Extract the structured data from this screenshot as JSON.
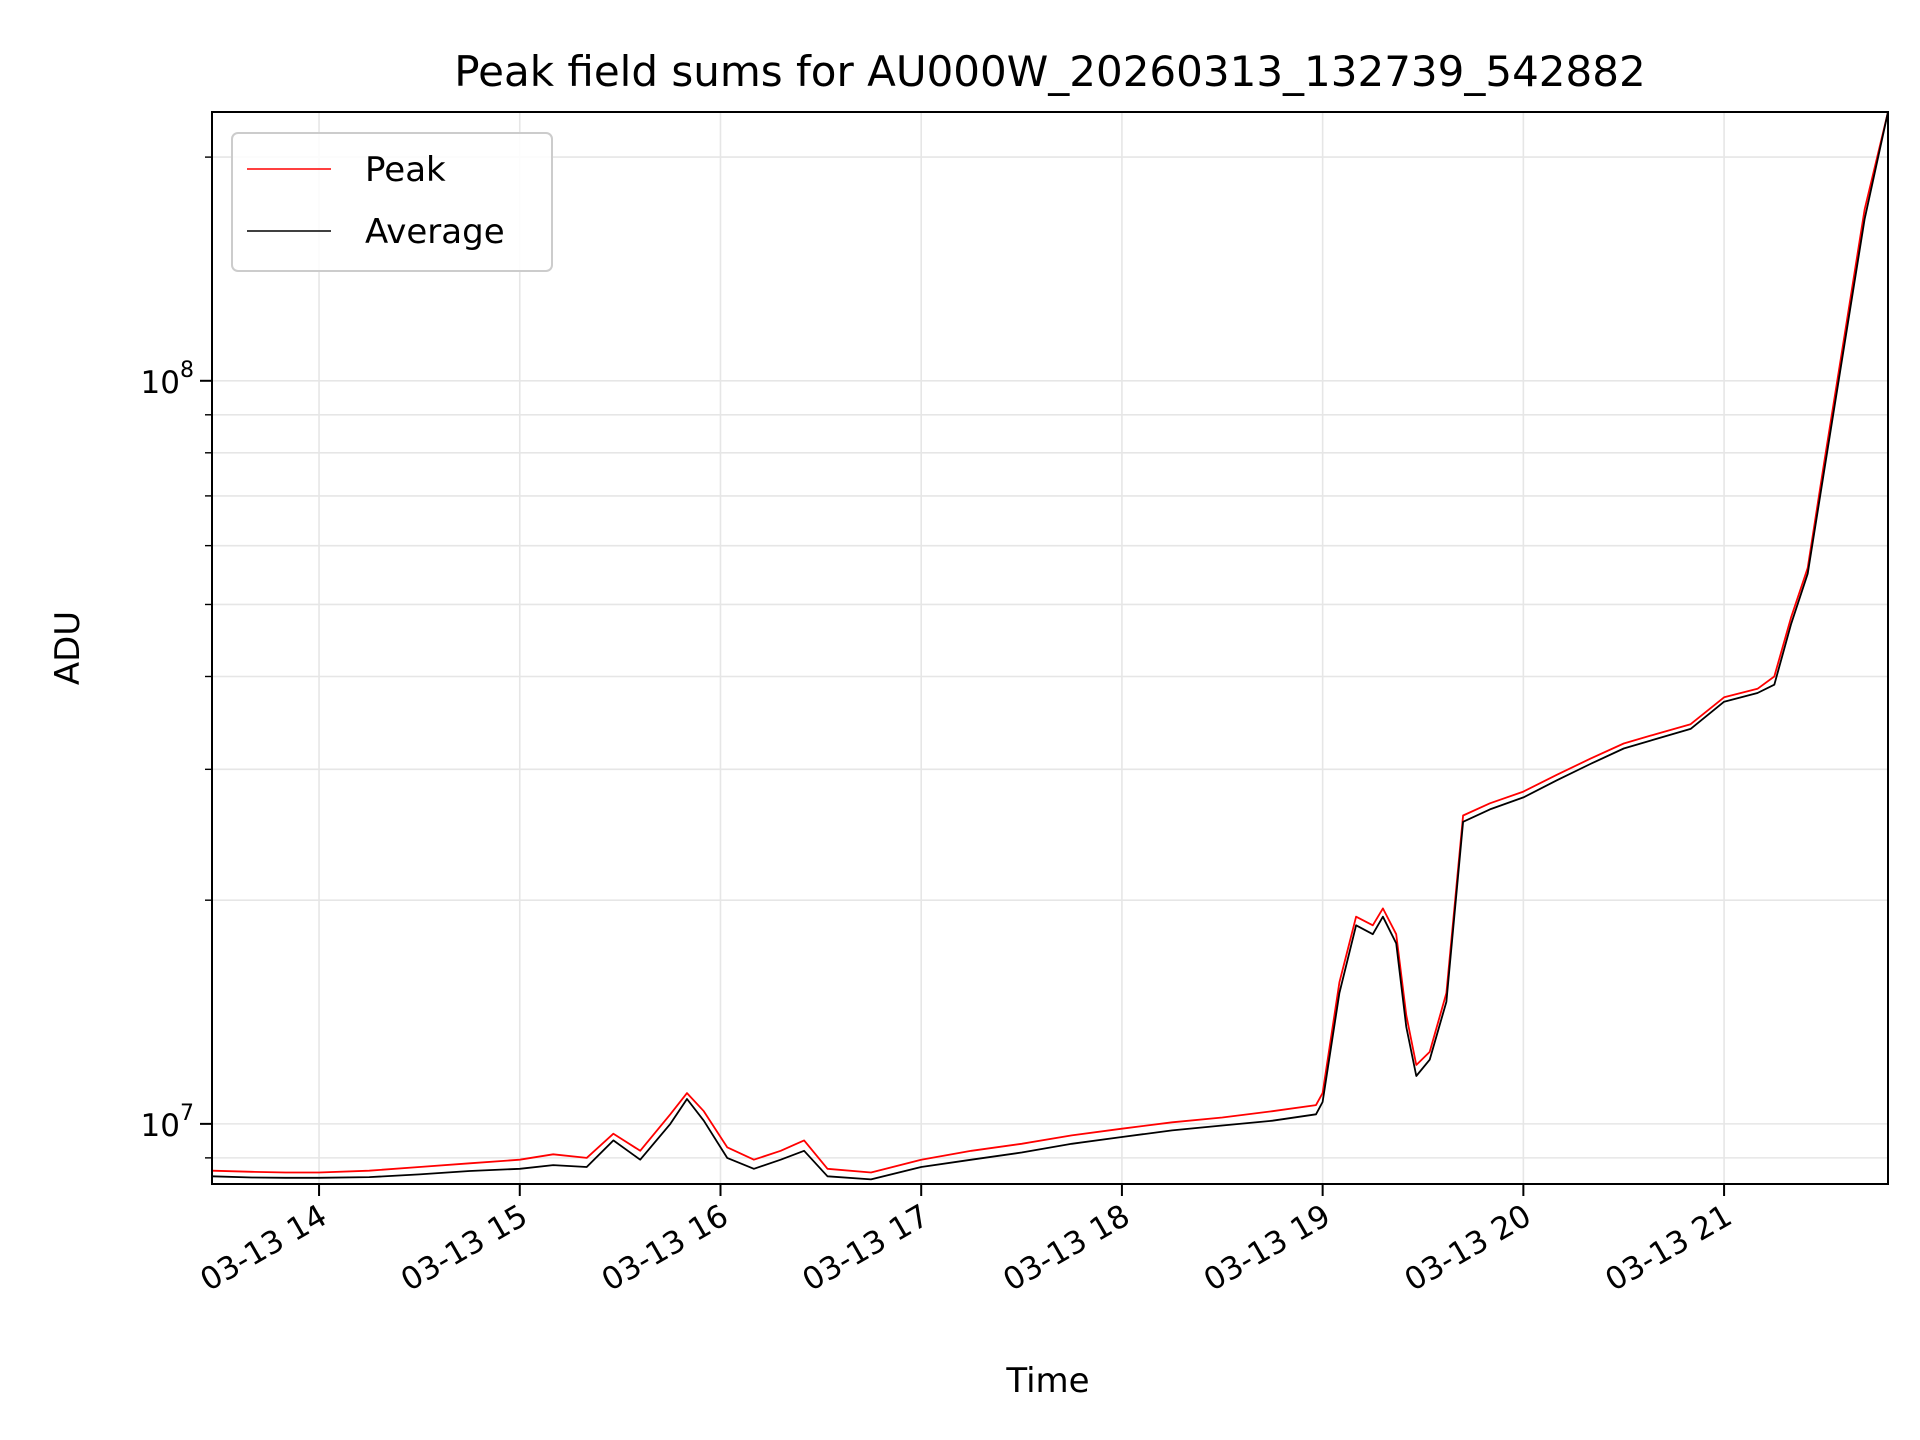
{
  "chart_data": {
    "type": "line",
    "title": "Peak field sums for AU000W_20260313_132739_542882",
    "xlabel": "Time",
    "ylabel": "ADU",
    "x_range": [
      "2026-03-13 13:28",
      "2026-03-13 21:49"
    ],
    "y_range": [
      8300000,
      230000000
    ],
    "y_scale": "log",
    "grid": true,
    "legend_position": "top-left",
    "x_tick_labels": [
      {
        "x": "2026-03-13 14:00",
        "label": "03-13 14"
      },
      {
        "x": "2026-03-13 15:00",
        "label": "03-13 15"
      },
      {
        "x": "2026-03-13 16:00",
        "label": "03-13 16"
      },
      {
        "x": "2026-03-13 17:00",
        "label": "03-13 17"
      },
      {
        "x": "2026-03-13 18:00",
        "label": "03-13 18"
      },
      {
        "x": "2026-03-13 19:00",
        "label": "03-13 19"
      },
      {
        "x": "2026-03-13 20:00",
        "label": "03-13 20"
      },
      {
        "x": "2026-03-13 21:00",
        "label": "03-13 21"
      }
    ],
    "y_major_ticks": [
      {
        "value": 10000000,
        "base": "10",
        "exp": "7"
      },
      {
        "value": 100000000,
        "base": "10",
        "exp": "8"
      }
    ],
    "y_minor_ticks": [
      9000000,
      20000000,
      30000000,
      40000000,
      50000000,
      60000000,
      70000000,
      80000000,
      90000000,
      200000000
    ],
    "series": [
      {
        "name": "Peak",
        "color": "#ff0000",
        "points": [
          [
            "2026-03-13 13:28",
            8650000
          ],
          [
            "2026-03-13 13:40",
            8620000
          ],
          [
            "2026-03-13 13:50",
            8600000
          ],
          [
            "2026-03-13 14:00",
            8600000
          ],
          [
            "2026-03-13 14:15",
            8650000
          ],
          [
            "2026-03-13 14:30",
            8750000
          ],
          [
            "2026-03-13 14:45",
            8850000
          ],
          [
            "2026-03-13 15:00",
            8950000
          ],
          [
            "2026-03-13 15:10",
            9100000
          ],
          [
            "2026-03-13 15:20",
            9000000
          ],
          [
            "2026-03-13 15:28",
            9700000
          ],
          [
            "2026-03-13 15:36",
            9200000
          ],
          [
            "2026-03-13 15:45",
            10300000
          ],
          [
            "2026-03-13 15:50",
            11000000
          ],
          [
            "2026-03-13 15:55",
            10400000
          ],
          [
            "2026-03-13 16:02",
            9300000
          ],
          [
            "2026-03-13 16:10",
            8950000
          ],
          [
            "2026-03-13 16:18",
            9200000
          ],
          [
            "2026-03-13 16:25",
            9500000
          ],
          [
            "2026-03-13 16:32",
            8700000
          ],
          [
            "2026-03-13 16:45",
            8600000
          ],
          [
            "2026-03-13 17:00",
            8950000
          ],
          [
            "2026-03-13 17:15",
            9200000
          ],
          [
            "2026-03-13 17:30",
            9400000
          ],
          [
            "2026-03-13 17:45",
            9650000
          ],
          [
            "2026-03-13 18:00",
            9850000
          ],
          [
            "2026-03-13 18:15",
            10050000
          ],
          [
            "2026-03-13 18:30",
            10200000
          ],
          [
            "2026-03-13 18:45",
            10400000
          ],
          [
            "2026-03-13 18:58",
            10600000
          ],
          [
            "2026-03-13 19:00",
            11000000
          ],
          [
            "2026-03-13 19:05",
            15500000
          ],
          [
            "2026-03-13 19:10",
            19000000
          ],
          [
            "2026-03-13 19:15",
            18500000
          ],
          [
            "2026-03-13 19:18",
            19500000
          ],
          [
            "2026-03-13 19:22",
            18000000
          ],
          [
            "2026-03-13 19:25",
            14000000
          ],
          [
            "2026-03-13 19:28",
            12000000
          ],
          [
            "2026-03-13 19:32",
            12500000
          ],
          [
            "2026-03-13 19:37",
            15000000
          ],
          [
            "2026-03-13 19:42",
            26000000
          ],
          [
            "2026-03-13 19:50",
            27000000
          ],
          [
            "2026-03-13 20:00",
            28000000
          ],
          [
            "2026-03-13 20:10",
            29500000
          ],
          [
            "2026-03-13 20:20",
            31000000
          ],
          [
            "2026-03-13 20:30",
            32500000
          ],
          [
            "2026-03-13 20:40",
            33500000
          ],
          [
            "2026-03-13 20:50",
            34500000
          ],
          [
            "2026-03-13 21:00",
            37500000
          ],
          [
            "2026-03-13 21:10",
            38500000
          ],
          [
            "2026-03-13 21:15",
            40000000
          ],
          [
            "2026-03-13 21:20",
            48000000
          ],
          [
            "2026-03-13 21:25",
            56000000
          ],
          [
            "2026-03-13 21:30",
            78000000
          ],
          [
            "2026-03-13 21:36",
            115000000
          ],
          [
            "2026-03-13 21:42",
            170000000
          ],
          [
            "2026-03-13 21:49",
            230000000
          ]
        ]
      },
      {
        "name": "Average",
        "color": "#000000",
        "points": [
          [
            "2026-03-13 13:28",
            8500000
          ],
          [
            "2026-03-13 13:40",
            8470000
          ],
          [
            "2026-03-13 13:50",
            8460000
          ],
          [
            "2026-03-13 14:00",
            8460000
          ],
          [
            "2026-03-13 14:15",
            8480000
          ],
          [
            "2026-03-13 14:30",
            8550000
          ],
          [
            "2026-03-13 14:45",
            8640000
          ],
          [
            "2026-03-13 15:00",
            8700000
          ],
          [
            "2026-03-13 15:10",
            8800000
          ],
          [
            "2026-03-13 15:20",
            8750000
          ],
          [
            "2026-03-13 15:28",
            9500000
          ],
          [
            "2026-03-13 15:36",
            8950000
          ],
          [
            "2026-03-13 15:45",
            10000000
          ],
          [
            "2026-03-13 15:50",
            10800000
          ],
          [
            "2026-03-13 15:55",
            10100000
          ],
          [
            "2026-03-13 16:02",
            9000000
          ],
          [
            "2026-03-13 16:10",
            8700000
          ],
          [
            "2026-03-13 16:18",
            8950000
          ],
          [
            "2026-03-13 16:25",
            9200000
          ],
          [
            "2026-03-13 16:32",
            8500000
          ],
          [
            "2026-03-13 16:45",
            8420000
          ],
          [
            "2026-03-13 17:00",
            8750000
          ],
          [
            "2026-03-13 17:15",
            8950000
          ],
          [
            "2026-03-13 17:30",
            9150000
          ],
          [
            "2026-03-13 17:45",
            9400000
          ],
          [
            "2026-03-13 18:00",
            9600000
          ],
          [
            "2026-03-13 18:15",
            9800000
          ],
          [
            "2026-03-13 18:30",
            9950000
          ],
          [
            "2026-03-13 18:45",
            10100000
          ],
          [
            "2026-03-13 18:58",
            10300000
          ],
          [
            "2026-03-13 19:00",
            10700000
          ],
          [
            "2026-03-13 19:05",
            15000000
          ],
          [
            "2026-03-13 19:10",
            18500000
          ],
          [
            "2026-03-13 19:15",
            18000000
          ],
          [
            "2026-03-13 19:18",
            19000000
          ],
          [
            "2026-03-13 19:22",
            17500000
          ],
          [
            "2026-03-13 19:25",
            13500000
          ],
          [
            "2026-03-13 19:28",
            11600000
          ],
          [
            "2026-03-13 19:32",
            12200000
          ],
          [
            "2026-03-13 19:37",
            14600000
          ],
          [
            "2026-03-13 19:42",
            25500000
          ],
          [
            "2026-03-13 19:50",
            26500000
          ],
          [
            "2026-03-13 20:00",
            27500000
          ],
          [
            "2026-03-13 20:10",
            29000000
          ],
          [
            "2026-03-13 20:20",
            30500000
          ],
          [
            "2026-03-13 20:30",
            32000000
          ],
          [
            "2026-03-13 20:40",
            33000000
          ],
          [
            "2026-03-13 20:50",
            34000000
          ],
          [
            "2026-03-13 21:00",
            37000000
          ],
          [
            "2026-03-13 21:10",
            38000000
          ],
          [
            "2026-03-13 21:15",
            39000000
          ],
          [
            "2026-03-13 21:20",
            47000000
          ],
          [
            "2026-03-13 21:25",
            55000000
          ],
          [
            "2026-03-13 21:30",
            76000000
          ],
          [
            "2026-03-13 21:36",
            112000000
          ],
          [
            "2026-03-13 21:42",
            165000000
          ],
          [
            "2026-03-13 21:49",
            230000000
          ]
        ]
      }
    ]
  }
}
